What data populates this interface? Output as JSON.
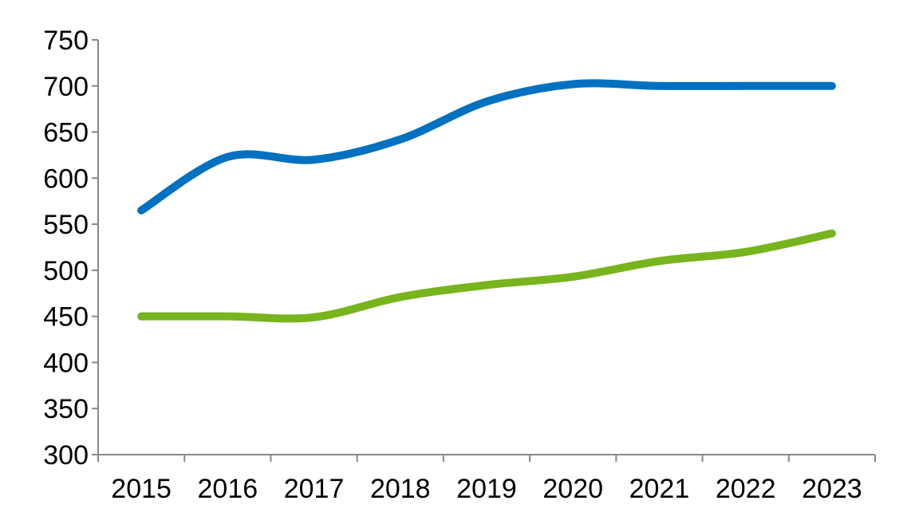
{
  "chart_data": {
    "type": "line",
    "title": "",
    "xlabel": "",
    "ylabel": "",
    "categories": [
      "2015",
      "2016",
      "2017",
      "2018",
      "2019",
      "2020",
      "2021",
      "2022",
      "2023"
    ],
    "ylim": [
      300,
      750
    ],
    "yticks": [
      300,
      350,
      400,
      450,
      500,
      550,
      600,
      650,
      700,
      750
    ],
    "grid": false,
    "smooth": true,
    "series": [
      {
        "color": "#0070C0",
        "values": [
          565,
          623,
          620,
          642,
          683,
          702,
          700,
          700,
          700
        ]
      },
      {
        "color": "#77B41E",
        "values": [
          450,
          450,
          449,
          471,
          484,
          493,
          510,
          520,
          540
        ]
      }
    ]
  }
}
